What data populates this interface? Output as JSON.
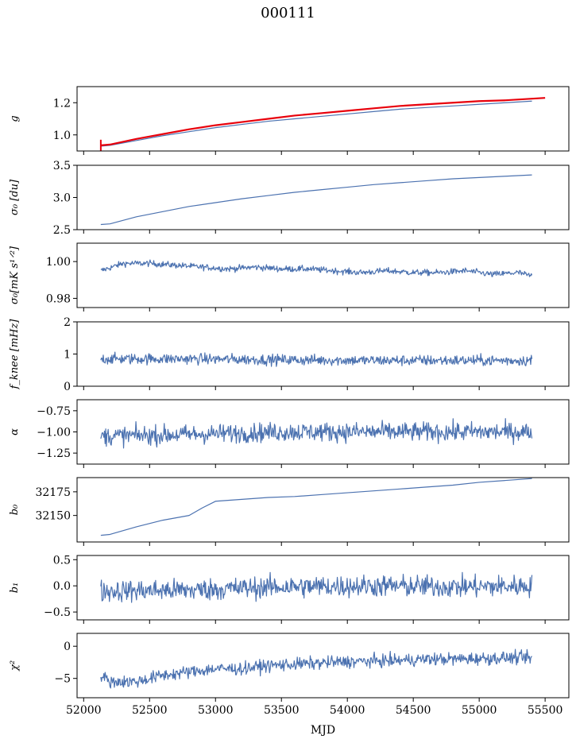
{
  "figure": {
    "suptitle": "000111",
    "xlabel": "MJD"
  },
  "chart_data": {
    "type": "line",
    "shared_x": {
      "label": "MJD",
      "lim": [
        51950,
        55680
      ],
      "ticks": [
        52000,
        52500,
        53000,
        53500,
        54000,
        54500,
        55000,
        55500
      ],
      "tick_labels": [
        "52000",
        "52500",
        "53000",
        "53500",
        "54000",
        "54500",
        "55000",
        "55500"
      ]
    },
    "panels": [
      {
        "ylabel": "g",
        "ylim": [
          0.9,
          1.3
        ],
        "yticks": [
          1.0,
          1.2
        ],
        "ytick_labels": [
          "1.0",
          "1.2"
        ],
        "series": [
          {
            "color": "#4c72b0",
            "noise": 0.0,
            "x": [
              52130,
              52200,
              52400,
              52600,
              52800,
              53000,
              53200,
              53400,
              53600,
              53800,
              54000,
              54200,
              54400,
              54600,
              54800,
              55000,
              55200,
              55400
            ],
            "y": [
              0.93,
              0.935,
              0.965,
              0.995,
              1.02,
              1.045,
              1.065,
              1.085,
              1.1,
              1.115,
              1.13,
              1.145,
              1.16,
              1.17,
              1.18,
              1.19,
              1.2,
              1.21
            ]
          },
          {
            "color": "#e8000b",
            "noise": 0.0,
            "width": 2.2,
            "x": [
              52130,
              52200,
              52400,
              52600,
              52800,
              53000,
              53200,
              53400,
              53600,
              53800,
              54000,
              54200,
              54400,
              54600,
              54800,
              55000,
              55200,
              55400,
              55500
            ],
            "y": [
              0.935,
              0.94,
              0.975,
              1.005,
              1.035,
              1.06,
              1.08,
              1.1,
              1.12,
              1.135,
              1.15,
              1.165,
              1.18,
              1.19,
              1.2,
              1.21,
              1.215,
              1.225,
              1.23
            ]
          }
        ]
      },
      {
        "ylabel": "σ₀ [du]",
        "ylim": [
          2.5,
          3.5
        ],
        "yticks": [
          2.5,
          3.0,
          3.5
        ],
        "ytick_labels": [
          "2.5",
          "3.0",
          "3.5"
        ],
        "series": [
          {
            "color": "#4c72b0",
            "noise": 0.0,
            "x": [
              52130,
              52200,
              52400,
              52600,
              52800,
              53000,
              53200,
              53400,
              53600,
              53800,
              54000,
              54200,
              54400,
              54600,
              54800,
              55000,
              55200,
              55400
            ],
            "y": [
              2.58,
              2.59,
              2.7,
              2.78,
              2.86,
              2.92,
              2.98,
              3.03,
              3.08,
              3.12,
              3.16,
              3.2,
              3.23,
              3.26,
              3.29,
              3.31,
              3.33,
              3.35
            ]
          }
        ]
      },
      {
        "ylabel": "σ₀[mK s¹ᐟ²]",
        "ylim": [
          0.975,
          1.01
        ],
        "yticks": [
          0.98,
          1.0
        ],
        "ytick_labels": [
          "0.98",
          "1.00"
        ],
        "series": [
          {
            "color": "#4c72b0",
            "noise": 0.0012,
            "x": [
              52130,
              52300,
              52500,
              52700,
              52900,
              53100,
              53300,
              53500,
              53700,
              53900,
              54100,
              54300,
              54500,
              54700,
              54900,
              55100,
              55300,
              55400
            ],
            "y": [
              0.995,
              0.999,
              0.999,
              0.998,
              0.997,
              0.996,
              0.997,
              0.996,
              0.996,
              0.995,
              0.994,
              0.995,
              0.994,
              0.994,
              0.995,
              0.993,
              0.994,
              0.992
            ]
          }
        ]
      },
      {
        "ylabel": "f_knee [mHz]",
        "ylim": [
          0,
          2
        ],
        "yticks": [
          0,
          1,
          2
        ],
        "ytick_labels": [
          "0",
          "1",
          "2"
        ],
        "series": [
          {
            "color": "#4c72b0",
            "noise": 0.12,
            "x": [
              52130,
              52800,
              53500,
              54200,
              54900,
              55400
            ],
            "y": [
              0.85,
              0.85,
              0.82,
              0.8,
              0.8,
              0.8
            ]
          }
        ]
      },
      {
        "ylabel": "α",
        "ylim": [
          -1.38,
          -0.62
        ],
        "yticks": [
          -1.25,
          -1.0,
          -0.75
        ],
        "ytick_labels": [
          "−1.25",
          "−1.00",
          "−0.75"
        ],
        "series": [
          {
            "color": "#4c72b0",
            "noise": 0.08,
            "x": [
              52130,
              52800,
              53500,
              54200,
              54900,
              55400
            ],
            "y": [
              -1.05,
              -1.03,
              -1.0,
              -1.0,
              -1.0,
              -1.0
            ]
          }
        ]
      },
      {
        "ylabel": "b₀",
        "ylim": [
          32122,
          32190
        ],
        "yticks": [
          32150,
          32175
        ],
        "ytick_labels": [
          "32150",
          "32175"
        ],
        "series": [
          {
            "color": "#4c72b0",
            "noise": 0.0,
            "x": [
              52130,
              52200,
              52400,
              52600,
              52800,
              52900,
              53000,
              53200,
              53400,
              53600,
              53800,
              54000,
              54200,
              54400,
              54600,
              54800,
              55000,
              55200,
              55400
            ],
            "y": [
              32129,
              32130,
              32138,
              32145,
              32150,
              32158,
              32165,
              32167,
              32169,
              32170,
              32172,
              32174,
              32176,
              32178,
              32180,
              32182,
              32185,
              32187,
              32189
            ]
          }
        ]
      },
      {
        "ylabel": "b₁",
        "ylim": [
          -0.65,
          0.58
        ],
        "yticks": [
          -0.5,
          0.0,
          0.5
        ],
        "ytick_labels": [
          "−0.5",
          "0.0",
          "0.5"
        ],
        "series": [
          {
            "color": "#4c72b0",
            "noise": 0.15,
            "x": [
              52130,
              52800,
              53500,
              54200,
              54900,
              55400
            ],
            "y": [
              -0.1,
              -0.08,
              -0.02,
              0.0,
              -0.02,
              0.0
            ]
          }
        ]
      },
      {
        "ylabel": "χ²",
        "ylim": [
          -8,
          2
        ],
        "yticks": [
          -5,
          0
        ],
        "ytick_labels": [
          "−5",
          "0"
        ],
        "series": [
          {
            "color": "#4c72b0",
            "noise": 0.7,
            "x": [
              52130,
              52200,
              52400,
              52600,
              52800,
              53000,
              53200,
              53400,
              53600,
              53800,
              54000,
              54200,
              54400,
              54600,
              54800,
              55000,
              55200,
              55400
            ],
            "y": [
              -4.5,
              -5.5,
              -5.5,
              -4.5,
              -4.0,
              -3.5,
              -3.5,
              -3.0,
              -2.8,
              -2.6,
              -2.4,
              -2.3,
              -2.2,
              -2.0,
              -2.0,
              -1.9,
              -1.8,
              -1.8
            ]
          }
        ]
      }
    ]
  }
}
